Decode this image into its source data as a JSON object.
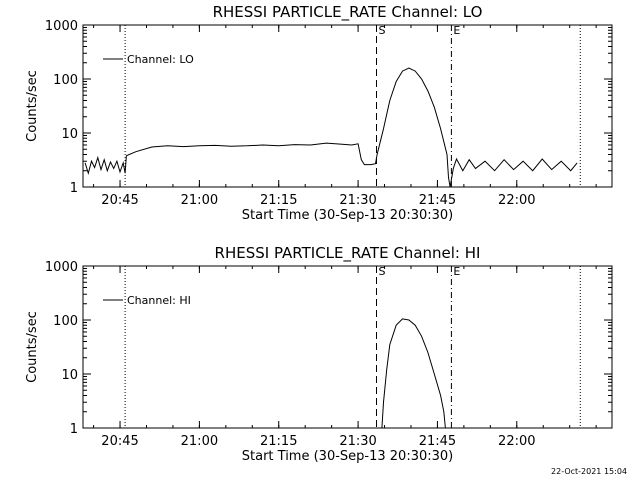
{
  "footer": {
    "timestamp": "22-Oct-2021 15:04"
  },
  "chart_data": [
    {
      "type": "line",
      "title": "RHESSI PARTICLE_RATE Channel: LO",
      "xlabel": "Start Time (30-Sep-13 20:30:30)",
      "ylabel": "Counts/sec",
      "yscale": "log",
      "ylim": [
        1,
        1000
      ],
      "xlim": [
        20.6333,
        22.3
      ],
      "x_tick_labels": [
        "20:45",
        "21:00",
        "21:15",
        "21:30",
        "21:45",
        "22:00"
      ],
      "x_tick_values": [
        20.75,
        21.0,
        21.25,
        21.5,
        21.75,
        22.0
      ],
      "y_tick_labels": [
        "1",
        "10",
        "100",
        "1000"
      ],
      "y_tick_values": [
        1,
        10,
        100,
        1000
      ],
      "grid": false,
      "legend": {
        "position": "top-left",
        "entries": [
          "Channel: LO"
        ]
      },
      "markers": [
        {
          "label": "S",
          "x": 21.558,
          "style": "dashed"
        },
        {
          "label": "E",
          "x": 21.794,
          "style": "dashdot"
        }
      ],
      "dotted_lines_x": [
        20.766,
        22.2
      ],
      "series": [
        {
          "name": "Channel: LO",
          "x": [
            20.64,
            20.65,
            20.66,
            20.67,
            20.68,
            20.69,
            20.7,
            20.71,
            20.72,
            20.73,
            20.74,
            20.75,
            20.76,
            20.766,
            20.77,
            20.8,
            20.85,
            20.9,
            20.95,
            21.0,
            21.05,
            21.1,
            21.15,
            21.2,
            21.25,
            21.3,
            21.35,
            21.4,
            21.45,
            21.48,
            21.5,
            21.51,
            21.52,
            21.54,
            21.555,
            21.56,
            21.58,
            21.6,
            21.62,
            21.64,
            21.66,
            21.68,
            21.7,
            21.72,
            21.74,
            21.76,
            21.78,
            21.785,
            21.79,
            21.8,
            21.81,
            21.83,
            21.85,
            21.87,
            21.9,
            21.93,
            21.96,
            21.99,
            22.02,
            22.05,
            22.08,
            22.11,
            22.14,
            22.17,
            22.19
          ],
          "y": [
            2.8,
            1.8,
            3.0,
            2.3,
            3.5,
            2.1,
            3.2,
            2.0,
            2.9,
            2.2,
            3.0,
            1.9,
            2.8,
            1.8,
            3.8,
            4.5,
            5.5,
            5.8,
            5.6,
            5.8,
            5.9,
            5.7,
            5.8,
            6.0,
            5.8,
            6.1,
            6.0,
            6.5,
            6.2,
            6.0,
            6.3,
            3.2,
            2.6,
            2.6,
            2.7,
            4.0,
            12,
            40,
            90,
            140,
            160,
            140,
            100,
            60,
            30,
            12,
            4,
            1.5,
            1.0,
            2.2,
            3.3,
            2.0,
            3.2,
            2.2,
            3.0,
            2.0,
            3.2,
            2.1,
            3.0,
            2.0,
            3.3,
            2.1,
            3.0,
            2.0,
            2.8
          ]
        }
      ]
    },
    {
      "type": "line",
      "title": "RHESSI PARTICLE_RATE Channel: HI",
      "xlabel": "Start Time (30-Sep-13 20:30:30)",
      "ylabel": "Counts/sec",
      "yscale": "log",
      "ylim": [
        1,
        1000
      ],
      "xlim": [
        20.6333,
        22.3
      ],
      "x_tick_labels": [
        "20:45",
        "21:00",
        "21:15",
        "21:30",
        "21:45",
        "22:00"
      ],
      "x_tick_values": [
        20.75,
        21.0,
        21.25,
        21.5,
        21.75,
        22.0
      ],
      "y_tick_labels": [
        "1",
        "10",
        "100",
        "1000"
      ],
      "y_tick_values": [
        1,
        10,
        100,
        1000
      ],
      "grid": false,
      "legend": {
        "position": "top-left",
        "entries": [
          "Channel: HI"
        ]
      },
      "markers": [
        {
          "label": "S",
          "x": 21.558,
          "style": "dashed"
        },
        {
          "label": "E",
          "x": 21.794,
          "style": "dashdot"
        }
      ],
      "dotted_lines_x": [
        20.766,
        22.2
      ],
      "series": [
        {
          "name": "Channel: HI",
          "x": [
            21.575,
            21.58,
            21.59,
            21.6,
            21.62,
            21.64,
            21.66,
            21.68,
            21.7,
            21.72,
            21.74,
            21.76,
            21.77,
            21.775
          ],
          "y": [
            1.0,
            3.0,
            12,
            35,
            80,
            105,
            100,
            80,
            50,
            25,
            10,
            4,
            2,
            1.0
          ]
        }
      ]
    }
  ]
}
